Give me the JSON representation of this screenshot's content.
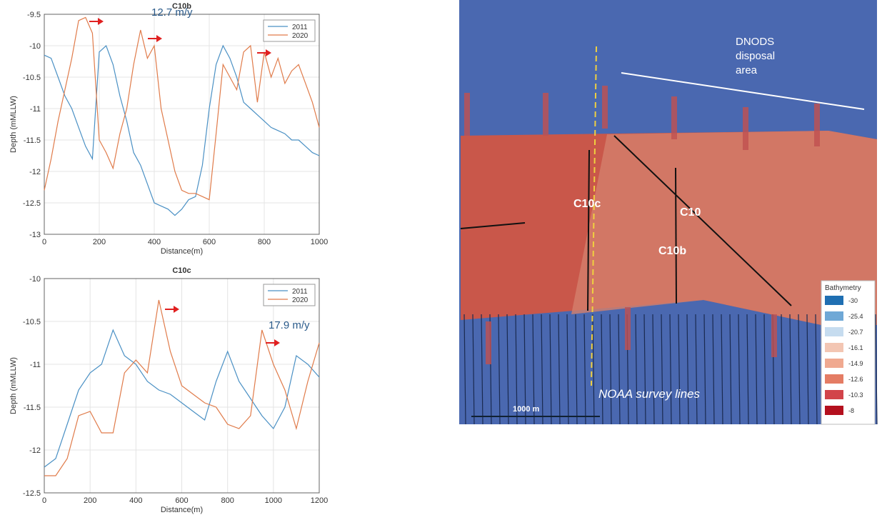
{
  "chart_data": [
    {
      "type": "line",
      "title": "C10b",
      "xlabel": "Distance(m)",
      "ylabel": "Depth (mMLLW)",
      "annotation": "12.7 m/y",
      "x": [
        0,
        25,
        50,
        75,
        100,
        125,
        150,
        175,
        200,
        225,
        250,
        275,
        300,
        325,
        350,
        375,
        400,
        425,
        450,
        475,
        500,
        525,
        550,
        575,
        600,
        625,
        650,
        675,
        700,
        725,
        750,
        775,
        800,
        825,
        850,
        875,
        900,
        925,
        950,
        975,
        1000
      ],
      "series": [
        {
          "name": "2011",
          "color": "#4a90c4",
          "values": [
            -10.15,
            -10.2,
            -10.5,
            -10.8,
            -11,
            -11.3,
            -11.6,
            -11.8,
            -10.1,
            -10,
            -10.3,
            -10.8,
            -11.2,
            -11.7,
            -11.9,
            -12.2,
            -12.5,
            -12.55,
            -12.6,
            -12.7,
            -12.6,
            -12.45,
            -12.4,
            -11.9,
            -11,
            -10.3,
            -10,
            -10.2,
            -10.5,
            -10.9,
            -11,
            -11.1,
            -11.2,
            -11.3,
            -11.35,
            -11.4,
            -11.5,
            -11.5,
            -11.6,
            -11.7,
            -11.75
          ]
        },
        {
          "name": "2020",
          "color": "#e07b4a",
          "values": [
            -12.3,
            -11.8,
            -11.2,
            -10.7,
            -10.2,
            -9.6,
            -9.55,
            -9.8,
            -11.5,
            -11.7,
            -11.95,
            -11.4,
            -11,
            -10.3,
            -9.75,
            -10.2,
            -10,
            -11,
            -11.5,
            -12,
            -12.3,
            -12.35,
            -12.35,
            -12.4,
            -12.45,
            -11.4,
            -10.3,
            -10.5,
            -10.7,
            -10.1,
            -10,
            -10.9,
            -10.1,
            -10.5,
            -10.2,
            -10.6,
            -10.4,
            -10.3,
            -10.6,
            -10.9,
            -11.3
          ]
        }
      ],
      "xlim": [
        0,
        1000
      ],
      "xticks": [
        0,
        200,
        400,
        600,
        800,
        1000
      ],
      "ylim": [
        -13,
        -9.5
      ],
      "yticks": [
        -13,
        -12.5,
        -12,
        -11.5,
        -11,
        -10.5,
        -10,
        -9.5
      ],
      "grid": true,
      "legend": "upper right"
    },
    {
      "type": "line",
      "title": "C10c",
      "xlabel": "Distance(m)",
      "ylabel": "Depth (mMLLW)",
      "annotation": "17.9 m/y",
      "x": [
        0,
        50,
        100,
        150,
        200,
        250,
        300,
        350,
        400,
        450,
        500,
        550,
        600,
        650,
        700,
        750,
        800,
        850,
        900,
        950,
        1000,
        1050,
        1100,
        1150,
        1200
      ],
      "series": [
        {
          "name": "2011",
          "color": "#4a90c4",
          "values": [
            -12.2,
            -12.1,
            -11.7,
            -11.3,
            -11.1,
            -11,
            -10.6,
            -10.9,
            -11,
            -11.2,
            -11.3,
            -11.35,
            -11.45,
            -11.55,
            -11.65,
            -11.2,
            -10.85,
            -11.2,
            -11.4,
            -11.6,
            -11.75,
            -11.5,
            -10.9,
            -11,
            -11.15
          ]
        },
        {
          "name": "2020",
          "color": "#e07b4a",
          "values": [
            -12.3,
            -12.3,
            -12.1,
            -11.6,
            -11.55,
            -11.8,
            -11.8,
            -11.1,
            -10.95,
            -11.1,
            -10.25,
            -10.85,
            -11.25,
            -11.35,
            -11.45,
            -11.5,
            -11.7,
            -11.75,
            -11.6,
            -10.6,
            -11,
            -11.3,
            -11.75,
            -11.2,
            -10.75
          ]
        }
      ],
      "xlim": [
        0,
        1200
      ],
      "xticks": [
        0,
        200,
        400,
        600,
        800,
        1000,
        1200
      ],
      "ylim": [
        -12.5,
        -10
      ],
      "yticks": [
        -12.5,
        -12,
        -11.5,
        -11,
        -10.5,
        -10
      ],
      "grid": true,
      "legend": "upper right"
    }
  ],
  "map": {
    "area_label": [
      "DNODS",
      "disposal",
      "area"
    ],
    "lines": [
      "C10c",
      "C10",
      "C10b"
    ],
    "survey_label": "NOAA survey lines",
    "scale": "1000 m",
    "legend": {
      "title": "Bathymetry",
      "values": [
        -30,
        -25.4,
        -20.7,
        -16.1,
        -14.9,
        -12.6,
        -10.3,
        -8
      ],
      "colors": [
        "#1f6fb2",
        "#6fa8d6",
        "#c6dcef",
        "#f3c6b3",
        "#f0a990",
        "#e47c64",
        "#d2444a",
        "#b4101e"
      ]
    }
  }
}
